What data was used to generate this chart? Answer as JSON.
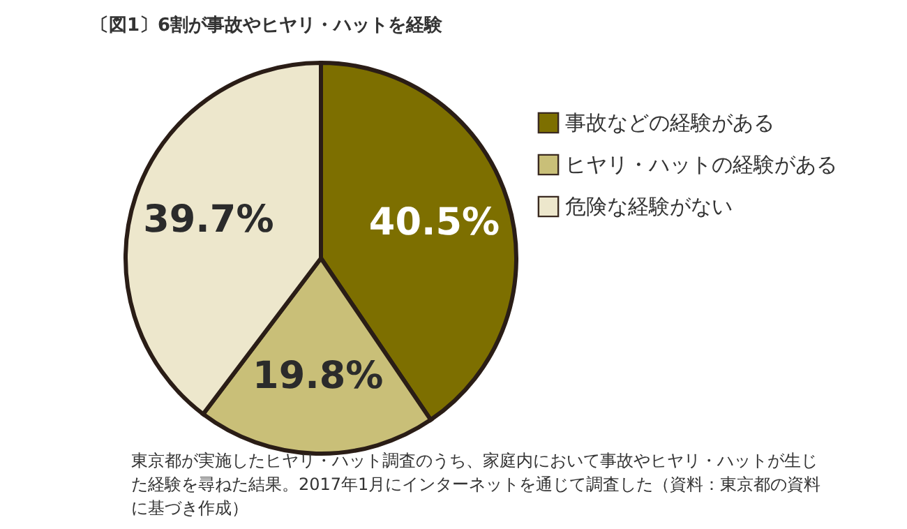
{
  "chart_data": {
    "type": "pie",
    "title": "〔図1〕6割が事故やヒヤリ・ハットを経験",
    "categories": [
      "事故などの経験がある",
      "ヒヤリ・ハットの経験がある",
      "危険な経験がない"
    ],
    "values": [
      40.5,
      19.8,
      39.7
    ],
    "colors": [
      "#7d6f00",
      "#c9bf78",
      "#ede7cc"
    ],
    "value_labels": [
      "40.5%",
      "19.8%",
      "39.7%"
    ],
    "legend": "right",
    "annotations": [
      "東京都が実施したヒヤリ・ハット調査のうち、家庭内において事故やヒヤリ・ハットが生じた経験を尋ねた結果。2017年1月にインターネットを通じて調査した（資料：東京都の資料に基づき作成）"
    ]
  }
}
